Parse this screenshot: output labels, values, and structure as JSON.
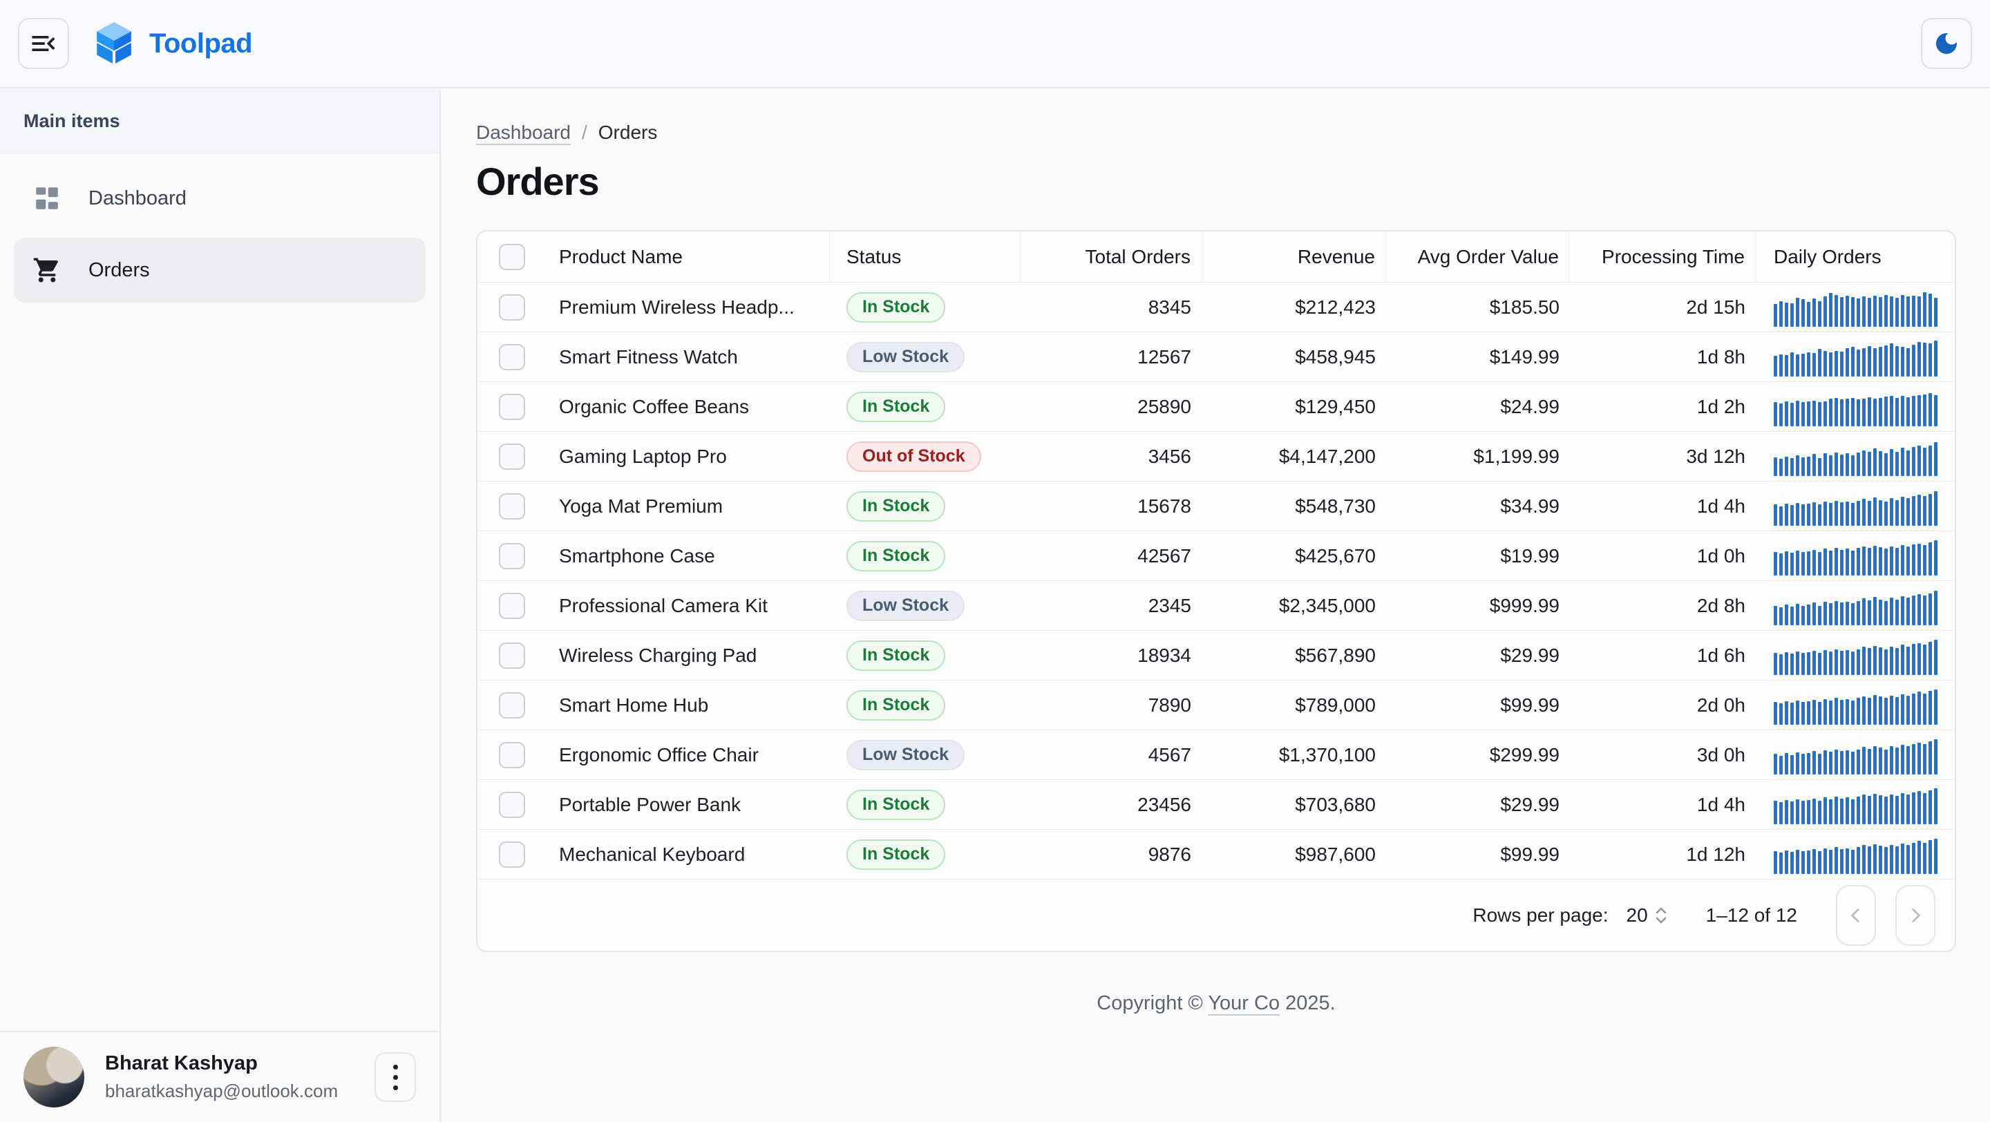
{
  "topbar": {
    "app_name": "Toolpad"
  },
  "sidebar": {
    "section_label": "Main items",
    "items": [
      {
        "label": "Dashboard",
        "icon": "dashboard-icon",
        "selected": false
      },
      {
        "label": "Orders",
        "icon": "cart-icon",
        "selected": true
      }
    ],
    "user": {
      "name": "Bharat Kashyap",
      "email": "bharatkashyap@outlook.com"
    }
  },
  "breadcrumb": {
    "parent": "Dashboard",
    "separator": "/",
    "current": "Orders"
  },
  "page_title": "Orders",
  "table": {
    "columns": [
      {
        "label": "Product Name"
      },
      {
        "label": "Status"
      },
      {
        "label": "Total Orders"
      },
      {
        "label": "Revenue"
      },
      {
        "label": "Avg Order Value"
      },
      {
        "label": "Processing Time"
      },
      {
        "label": "Daily Orders"
      }
    ],
    "rows": [
      {
        "product": "Premium Wireless Headp...",
        "status": "In Stock",
        "status_variant": "in-stock",
        "total_orders": "8345",
        "revenue": "$212,423",
        "avg_order_value": "$185.50",
        "processing_time": "2d 15h",
        "daily_orders": [
          58,
          66,
          62,
          60,
          74,
          70,
          64,
          72,
          66,
          78,
          86,
          82,
          76,
          80,
          76,
          72,
          78,
          74,
          80,
          76,
          82,
          78,
          74,
          82,
          78,
          80,
          78,
          88,
          84,
          74
        ]
      },
      {
        "product": "Smart Fitness Watch",
        "status": "Low Stock",
        "status_variant": "low-stock",
        "total_orders": "12567",
        "revenue": "$458,945",
        "avg_order_value": "$149.99",
        "processing_time": "1d 8h",
        "daily_orders": [
          52,
          56,
          54,
          62,
          56,
          58,
          62,
          60,
          70,
          66,
          62,
          66,
          64,
          72,
          76,
          68,
          72,
          78,
          72,
          76,
          80,
          84,
          78,
          76,
          72,
          82,
          88,
          86,
          84,
          92
        ]
      },
      {
        "product": "Organic Coffee Beans",
        "status": "In Stock",
        "status_variant": "in-stock",
        "total_orders": "25890",
        "revenue": "$129,450",
        "avg_order_value": "$24.99",
        "processing_time": "1d 2h",
        "daily_orders": [
          62,
          58,
          64,
          60,
          66,
          62,
          64,
          66,
          62,
          64,
          70,
          72,
          68,
          70,
          72,
          68,
          70,
          74,
          70,
          72,
          76,
          78,
          72,
          78,
          74,
          78,
          80,
          82,
          84,
          80
        ]
      },
      {
        "product": "Gaming Laptop Pro",
        "status": "Out of Stock",
        "status_variant": "out-of-stock",
        "total_orders": "3456",
        "revenue": "$4,147,200",
        "avg_order_value": "$1,199.99",
        "processing_time": "3d 12h",
        "daily_orders": [
          48,
          44,
          50,
          46,
          52,
          48,
          50,
          56,
          46,
          58,
          52,
          60,
          54,
          58,
          52,
          60,
          66,
          62,
          70,
          64,
          58,
          68,
          62,
          72,
          66,
          74,
          78,
          72,
          78,
          86
        ]
      },
      {
        "product": "Yoga Mat Premium",
        "status": "In Stock",
        "status_variant": "in-stock",
        "total_orders": "15678",
        "revenue": "$548,730",
        "avg_order_value": "$34.99",
        "processing_time": "1d 4h",
        "daily_orders": [
          54,
          50,
          56,
          52,
          58,
          54,
          56,
          60,
          54,
          62,
          58,
          64,
          60,
          62,
          58,
          64,
          68,
          64,
          72,
          66,
          62,
          70,
          66,
          74,
          70,
          76,
          80,
          76,
          82,
          88
        ]
      },
      {
        "product": "Smartphone Case",
        "status": "In Stock",
        "status_variant": "in-stock",
        "total_orders": "42567",
        "revenue": "$425,670",
        "avg_order_value": "$19.99",
        "processing_time": "1d 0h",
        "daily_orders": [
          60,
          56,
          62,
          58,
          64,
          60,
          62,
          66,
          60,
          68,
          64,
          70,
          66,
          68,
          64,
          70,
          74,
          70,
          76,
          72,
          68,
          74,
          70,
          78,
          74,
          80,
          82,
          78,
          84,
          90
        ]
      },
      {
        "product": "Professional Camera Kit",
        "status": "Low Stock",
        "status_variant": "low-stock",
        "total_orders": "2345",
        "revenue": "$2,345,000",
        "avg_order_value": "$999.99",
        "processing_time": "2d 8h",
        "daily_orders": [
          50,
          46,
          52,
          48,
          54,
          50,
          52,
          58,
          50,
          60,
          56,
          62,
          58,
          60,
          56,
          62,
          68,
          64,
          72,
          66,
          62,
          70,
          66,
          74,
          70,
          76,
          80,
          76,
          82,
          88
        ]
      },
      {
        "product": "Wireless Charging Pad",
        "status": "In Stock",
        "status_variant": "in-stock",
        "total_orders": "18934",
        "revenue": "$567,890",
        "avg_order_value": "$29.99",
        "processing_time": "1d 6h",
        "daily_orders": [
          56,
          52,
          58,
          54,
          60,
          56,
          58,
          62,
          56,
          64,
          60,
          66,
          62,
          64,
          60,
          66,
          72,
          68,
          74,
          70,
          66,
          72,
          68,
          78,
          72,
          80,
          82,
          78,
          84,
          90
        ]
      },
      {
        "product": "Smart Home Hub",
        "status": "In Stock",
        "status_variant": "in-stock",
        "total_orders": "7890",
        "revenue": "$789,000",
        "avg_order_value": "$99.99",
        "processing_time": "2d 0h",
        "daily_orders": [
          58,
          54,
          60,
          56,
          62,
          58,
          60,
          64,
          58,
          66,
          62,
          68,
          64,
          66,
          62,
          68,
          72,
          68,
          76,
          72,
          68,
          74,
          70,
          78,
          74,
          80,
          84,
          80,
          86,
          90
        ]
      },
      {
        "product": "Ergonomic Office Chair",
        "status": "Low Stock",
        "status_variant": "low-stock",
        "total_orders": "4567",
        "revenue": "$1,370,100",
        "avg_order_value": "$299.99",
        "processing_time": "3d 0h",
        "daily_orders": [
          52,
          48,
          54,
          50,
          56,
          52,
          54,
          60,
          52,
          62,
          58,
          64,
          60,
          62,
          58,
          64,
          70,
          66,
          72,
          68,
          64,
          72,
          68,
          76,
          72,
          78,
          82,
          78,
          84,
          90
        ]
      },
      {
        "product": "Portable Power Bank",
        "status": "In Stock",
        "status_variant": "in-stock",
        "total_orders": "23456",
        "revenue": "$703,680",
        "avg_order_value": "$29.99",
        "processing_time": "1d 4h",
        "daily_orders": [
          60,
          56,
          62,
          58,
          64,
          60,
          62,
          66,
          60,
          68,
          64,
          70,
          66,
          68,
          64,
          70,
          76,
          72,
          78,
          74,
          70,
          76,
          72,
          80,
          76,
          82,
          84,
          80,
          86,
          92
        ]
      },
      {
        "product": "Mechanical Keyboard",
        "status": "In Stock",
        "status_variant": "in-stock",
        "total_orders": "9876",
        "revenue": "$987,600",
        "avg_order_value": "$99.99",
        "processing_time": "1d 12h",
        "daily_orders": [
          58,
          54,
          60,
          56,
          62,
          58,
          60,
          64,
          58,
          66,
          62,
          68,
          64,
          66,
          62,
          68,
          74,
          70,
          76,
          72,
          68,
          74,
          70,
          78,
          74,
          80,
          84,
          80,
          86,
          90
        ]
      }
    ],
    "footer": {
      "rows_per_page_label": "Rows per page:",
      "rows_per_page_value": "20",
      "range_label": "1–12 of 12"
    }
  },
  "page_footer": {
    "prefix": "Copyright © ",
    "company": "Your Co",
    "suffix": " 2025."
  },
  "colors": {
    "brand_blue": "#1673e6",
    "sparkline_blue": "#1873d3",
    "moon_blue": "#1565c0",
    "in_stock_text": "#1a7d36",
    "low_stock_text": "#4a5a73",
    "out_of_stock_text": "#a21c1c"
  }
}
